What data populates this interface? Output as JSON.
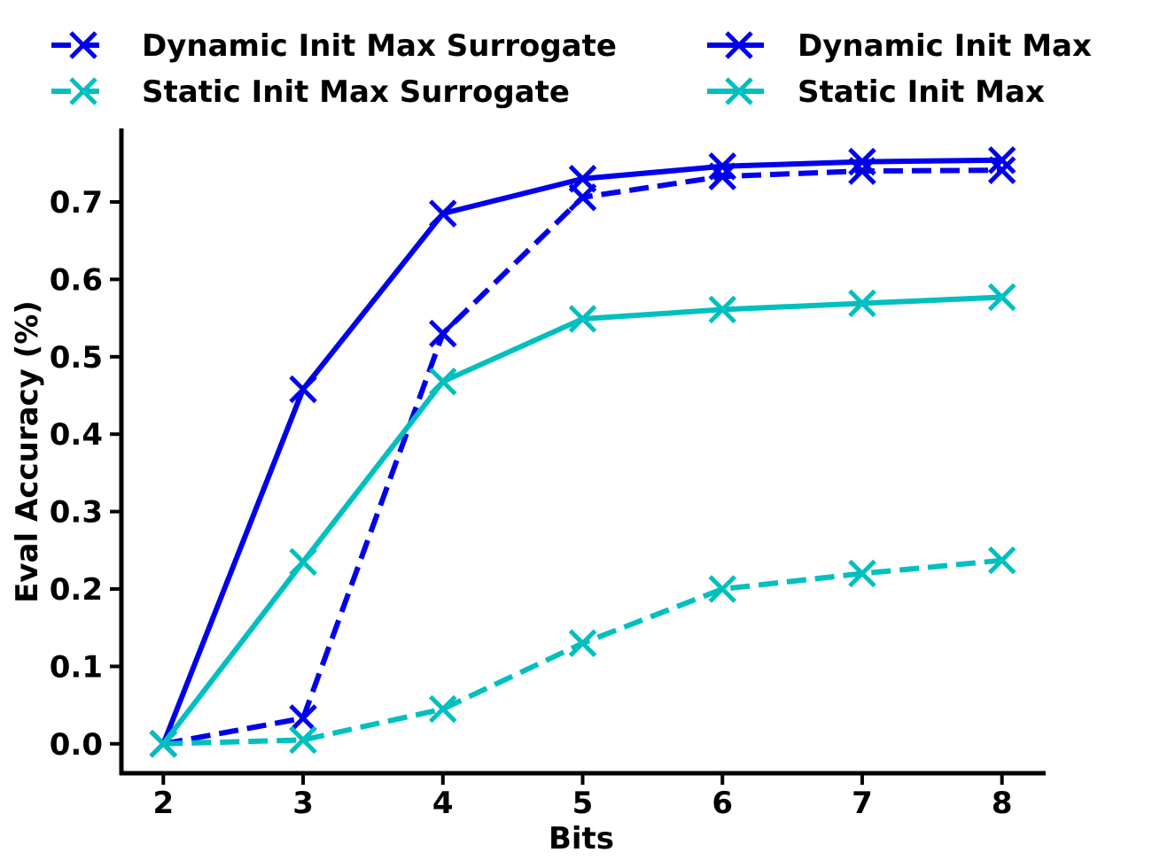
{
  "chart_data": {
    "type": "line",
    "title": "",
    "xlabel": "Bits",
    "ylabel": "Eval Accuracy (%)",
    "x": [
      2,
      3,
      4,
      5,
      6,
      7,
      8
    ],
    "x_tick_labels": [
      "2",
      "3",
      "4",
      "5",
      "6",
      "7",
      "8"
    ],
    "xlim": [
      1.7,
      8.3
    ],
    "ylim": [
      -0.038,
      0.795
    ],
    "y_ticks": [
      0.0,
      0.1,
      0.2,
      0.3,
      0.4,
      0.5,
      0.6,
      0.7
    ],
    "y_tick_labels": [
      "0.0",
      "0.1",
      "0.2",
      "0.3",
      "0.4",
      "0.5",
      "0.6",
      "0.7"
    ],
    "grid": false,
    "legend_position": "top, above plot, 2 columns",
    "series": [
      {
        "name": "Dynamic Init Max Surrogate",
        "color": "#0000ee",
        "linestyle": "dashed",
        "marker": "x",
        "values": [
          0.0,
          0.033,
          0.53,
          0.706,
          0.733,
          0.74,
          0.741
        ]
      },
      {
        "name": "Static Init Max Surrogate",
        "color": "#00bfbf",
        "linestyle": "dashed",
        "marker": "x",
        "values": [
          0.0,
          0.005,
          0.045,
          0.13,
          0.2,
          0.22,
          0.237
        ]
      },
      {
        "name": "Dynamic Init Max",
        "color": "#0000ee",
        "linestyle": "solid",
        "marker": "x",
        "values": [
          0.0,
          0.458,
          0.685,
          0.73,
          0.746,
          0.752,
          0.754
        ]
      },
      {
        "name": "Static Init Max",
        "color": "#00bfbf",
        "linestyle": "solid",
        "marker": "x",
        "values": [
          0.0,
          0.235,
          0.468,
          0.549,
          0.561,
          0.569,
          0.577
        ]
      }
    ]
  }
}
